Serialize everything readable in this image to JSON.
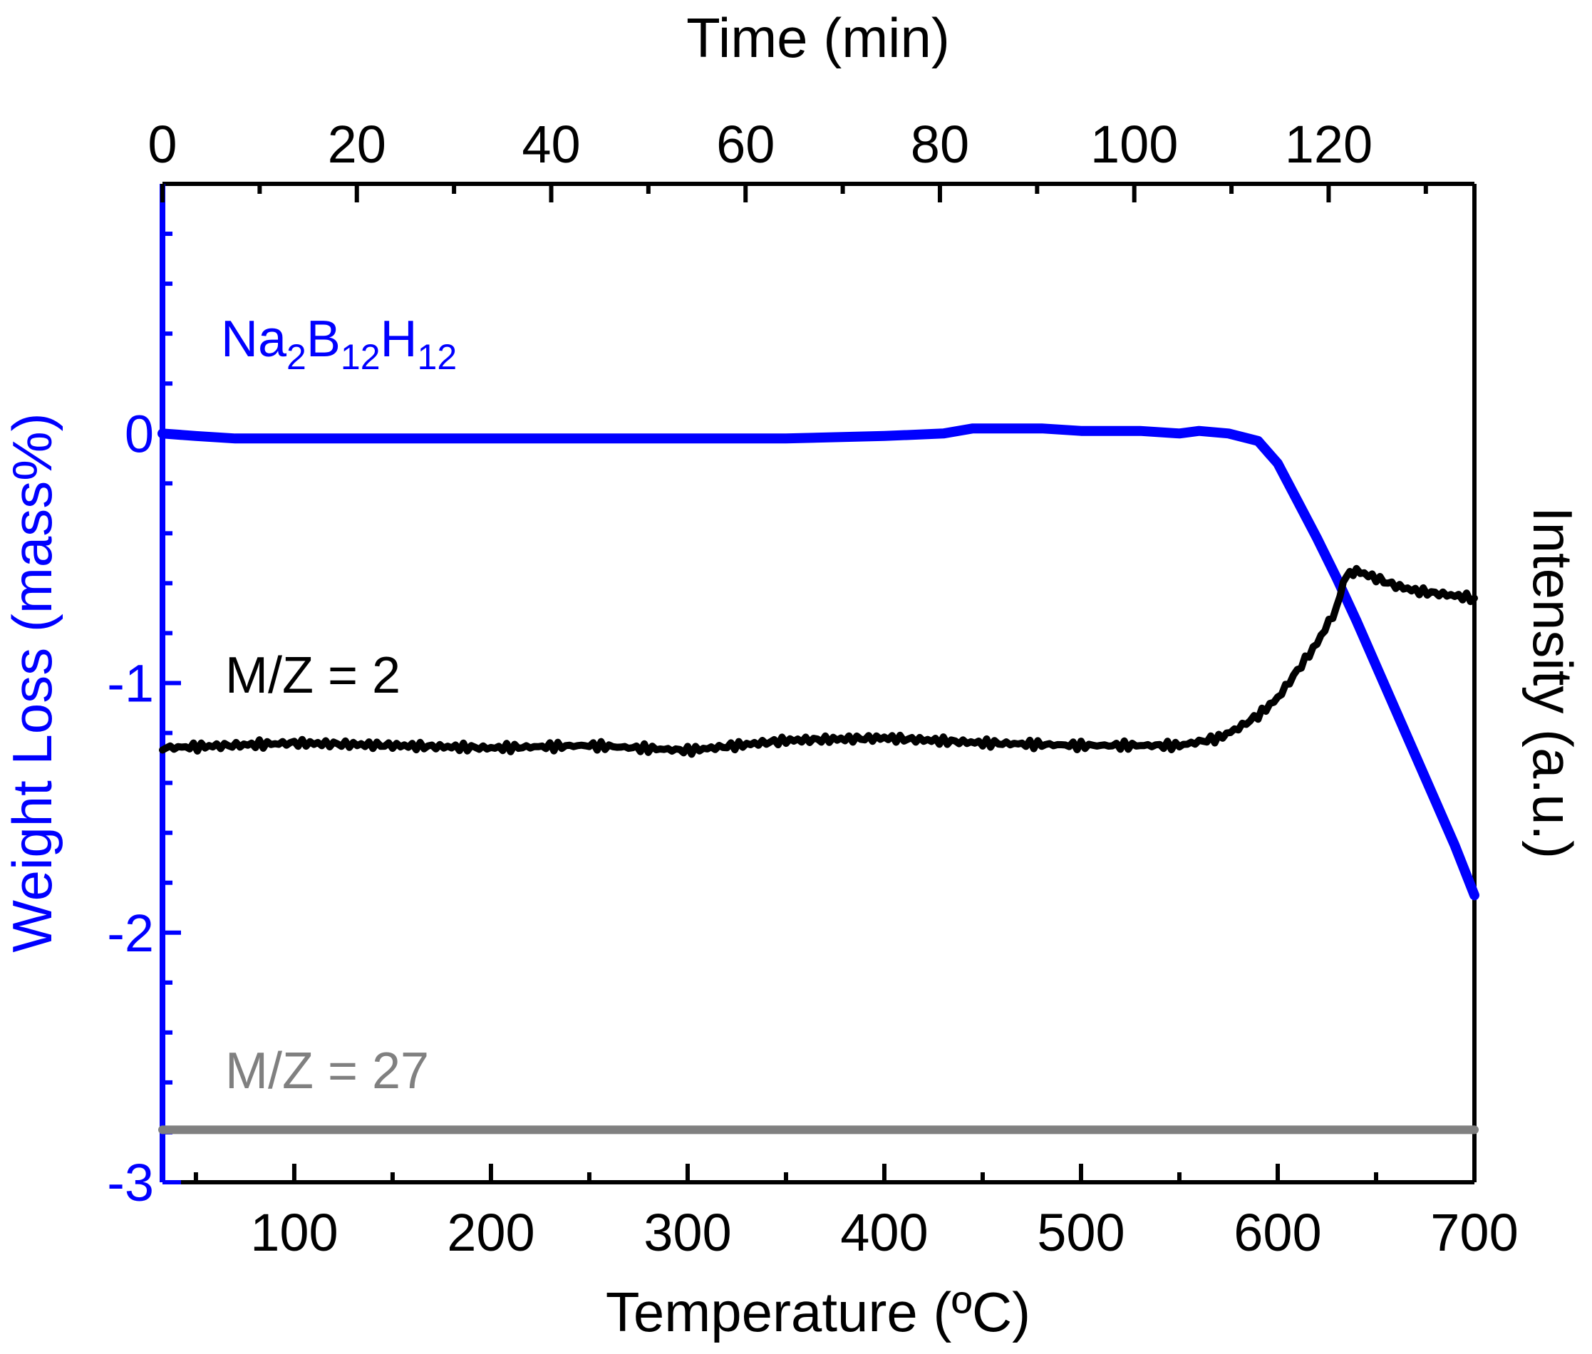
{
  "chart_data": {
    "type": "line",
    "title": "",
    "xlabel": "Temperature (ºC)",
    "x_top_label": "Time (min)",
    "ylabel": "Weight Loss (mass%)",
    "y2label": "Intensity (a.u.)",
    "xlim": [
      33,
      700
    ],
    "x_top_lim": [
      0,
      135
    ],
    "ylim": [
      -3,
      1
    ],
    "x_ticks": [
      100,
      200,
      300,
      400,
      500,
      600,
      700
    ],
    "x_minor_ticks": [
      50,
      150,
      250,
      350,
      450,
      550,
      650
    ],
    "x_top_ticks": [
      0,
      20,
      40,
      60,
      80,
      100,
      120
    ],
    "y_ticks": [
      -3,
      -2,
      -1,
      0
    ],
    "y_tick_labels": [
      "-3",
      "-2",
      "-1",
      "0"
    ],
    "grid": false,
    "colors": {
      "weight": "#0000ff",
      "mz2": "#000000",
      "mz27": "#808080",
      "frame": "#000000"
    },
    "annotations": {
      "sample": {
        "base": "Na",
        "sub1": "2",
        "mid": "B",
        "sub2": "12",
        "end": "H",
        "sub3": "12"
      },
      "mz2": "M/Z = 2",
      "mz27": "M/Z = 27"
    },
    "series": [
      {
        "name": "Na2B12H12 weight loss",
        "axis": "left",
        "x": [
          33,
          50,
          70,
          100,
          150,
          200,
          250,
          300,
          350,
          400,
          430,
          445,
          460,
          480,
          500,
          530,
          550,
          560,
          575,
          590,
          600,
          610,
          620,
          630,
          640,
          650,
          660,
          670,
          680,
          690,
          700
        ],
        "y": [
          0,
          -0.01,
          -0.02,
          -0.02,
          -0.02,
          -0.02,
          -0.02,
          -0.02,
          -0.02,
          -0.01,
          0,
          0.02,
          0.02,
          0.02,
          0.01,
          0.01,
          0,
          0.01,
          0,
          -0.03,
          -0.12,
          -0.27,
          -0.42,
          -0.58,
          -0.75,
          -0.93,
          -1.11,
          -1.29,
          -1.47,
          -1.65,
          -1.85
        ]
      },
      {
        "name": "M/Z = 2",
        "axis": "right",
        "x": [
          33,
          100,
          150,
          200,
          250,
          300,
          350,
          400,
          450,
          500,
          550,
          570,
          580,
          590,
          600,
          610,
          620,
          630,
          635,
          640,
          650,
          660,
          670,
          680,
          690,
          700
        ],
        "y": [
          -1.26,
          -1.24,
          -1.25,
          -1.26,
          -1.25,
          -1.27,
          -1.23,
          -1.22,
          -1.24,
          -1.25,
          -1.25,
          -1.22,
          -1.18,
          -1.13,
          -1.06,
          -0.95,
          -0.84,
          -0.7,
          -0.56,
          -0.55,
          -0.58,
          -0.61,
          -0.63,
          -0.64,
          -0.65,
          -0.66
        ]
      },
      {
        "name": "M/Z = 27",
        "axis": "right",
        "x": [
          33,
          700
        ],
        "y": [
          -2.79,
          -2.79
        ]
      }
    ]
  }
}
